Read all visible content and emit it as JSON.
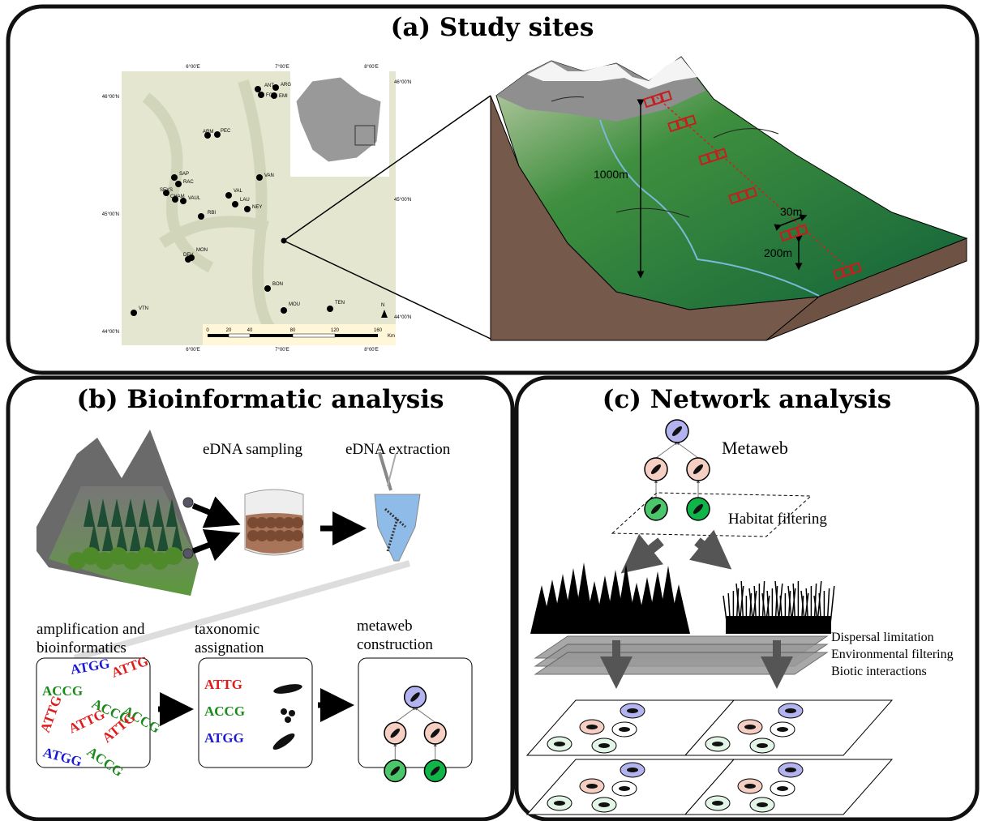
{
  "panel_a": {
    "title": "(a) Study sites",
    "map": {
      "sites": [
        "ANT",
        "ARG",
        "FOR",
        "EMI",
        "ARM",
        "PEC",
        "SAP",
        "RAC",
        "SEYS",
        "CHAM",
        "VAUL",
        "VAL",
        "LAU",
        "NEY",
        "RBI",
        "VAN",
        "MON",
        "DEV",
        "BON",
        "MOU",
        "TEN",
        "VTN"
      ],
      "lon_labels": [
        "6°00'E",
        "7°00'E",
        "8°00'E"
      ],
      "lat_labels": [
        "46°00'N",
        "45°00'N",
        "44°00'N"
      ],
      "scale": {
        "ticks": [
          "0",
          "20",
          "40",
          "80",
          "120",
          "160"
        ],
        "unit": "Km"
      },
      "north": "N"
    },
    "transect": {
      "elevation": "1000m",
      "width": "30m",
      "spacing": "200m"
    }
  },
  "panel_b": {
    "title": "(b) Bioinformatic analysis",
    "steps": {
      "sampling": "eDNA sampling",
      "extraction": "eDNA extraction",
      "amplification": [
        "amplification and",
        "bioinformatics"
      ],
      "assignation": [
        "taxonomic",
        "assignation"
      ],
      "metaweb": [
        "metaweb",
        "construction"
      ]
    },
    "sequences": [
      {
        "text": "ATGG",
        "color": "#1a1ad6"
      },
      {
        "text": "ATTG",
        "color": "#e01b1b"
      },
      {
        "text": "ACCG",
        "color": "#1a8a1a"
      },
      {
        "text": "ACCG",
        "color": "#1a8a1a"
      },
      {
        "text": "ATTG",
        "color": "#e01b1b"
      },
      {
        "text": "ACCG",
        "color": "#1a8a1a"
      },
      {
        "text": "ATTG",
        "color": "#e01b1b"
      },
      {
        "text": "ATTG",
        "color": "#e01b1b"
      },
      {
        "text": "ATGG",
        "color": "#1a1ad6"
      },
      {
        "text": "ACCG",
        "color": "#1a8a1a"
      }
    ],
    "assigned": [
      {
        "text": "ATTG",
        "color": "#e01b1b"
      },
      {
        "text": "ACCG",
        "color": "#1a8a1a"
      },
      {
        "text": "ATGG",
        "color": "#1a1ad6"
      }
    ]
  },
  "panel_c": {
    "title": "(c) Network analysis",
    "metaweb": "Metaweb",
    "habitat": "Habitat filtering",
    "filters": [
      "Dispersal limitation",
      "Environmental filtering",
      "Biotic interactions"
    ]
  }
}
